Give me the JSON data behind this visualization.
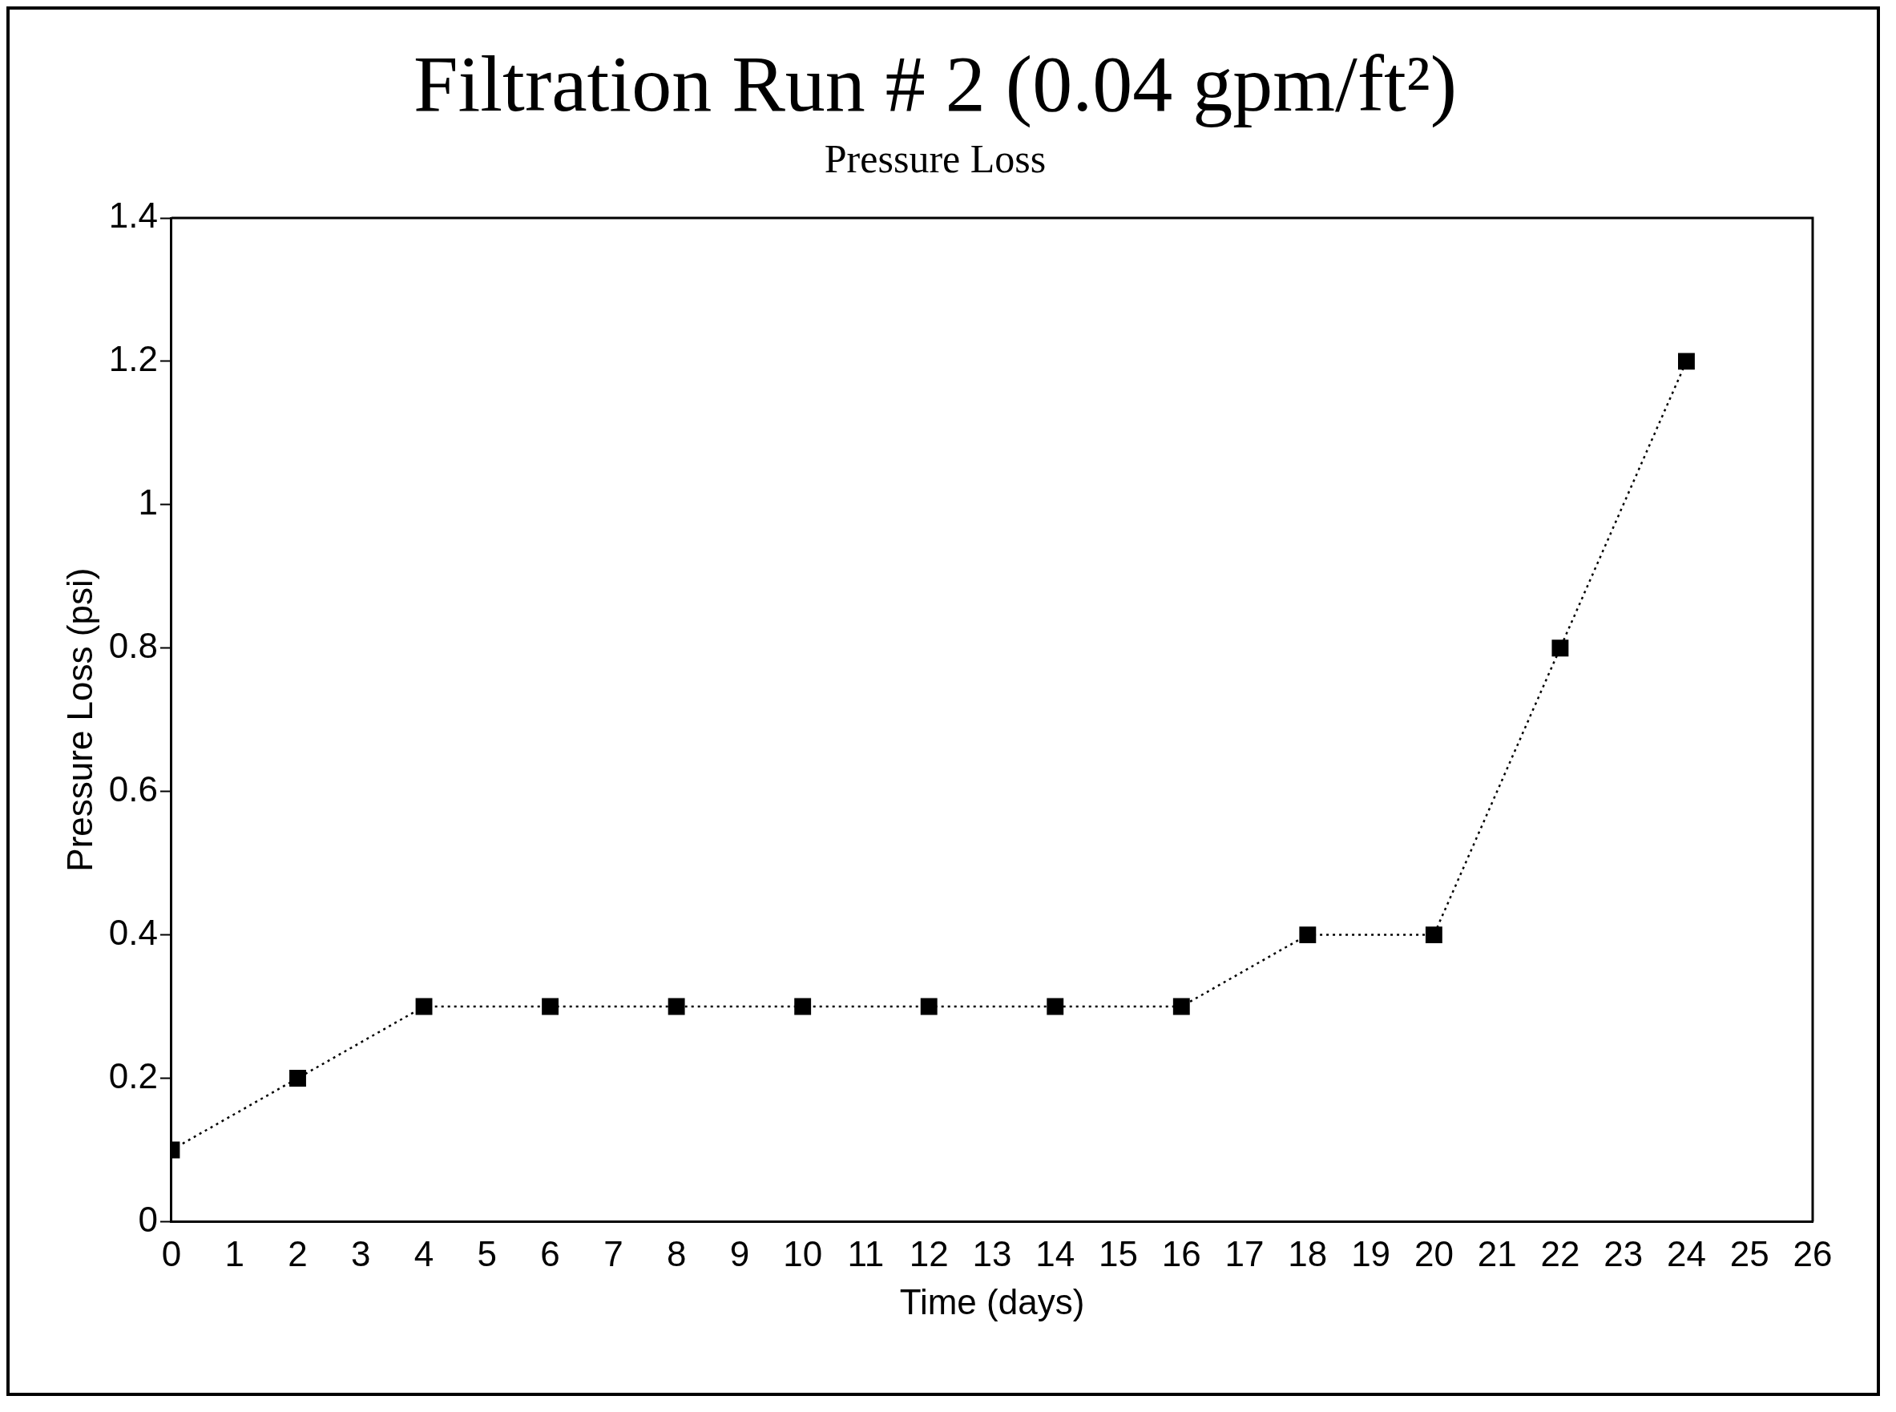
{
  "chart_data": {
    "type": "line",
    "title": "Filtration Run # 2 (0.04 gpm/ft²)",
    "subtitle": "Pressure Loss",
    "xlabel": "Time (days)",
    "ylabel": "Pressure Loss (psi)",
    "x": [
      0,
      2,
      4,
      6,
      8,
      10,
      12,
      14,
      16,
      18,
      20,
      22,
      24
    ],
    "series": [
      {
        "color": "#000000",
        "values": [
          0.1,
          0.2,
          0.3,
          0.3,
          0.3,
          0.3,
          0.3,
          0.3,
          0.3,
          0.4,
          0.4,
          0.8,
          1.2
        ]
      }
    ],
    "xlim": [
      0,
      26
    ],
    "xticks": [
      0,
      1,
      2,
      3,
      4,
      5,
      6,
      7,
      8,
      9,
      10,
      11,
      12,
      13,
      14,
      15,
      16,
      17,
      18,
      19,
      20,
      21,
      22,
      23,
      24,
      25,
      26
    ],
    "ylim": [
      0,
      1.4
    ],
    "yticks": [
      0,
      0.2,
      0.4,
      0.6,
      0.8,
      1,
      1.2,
      1.4
    ],
    "grid": false,
    "legend": false,
    "marker": "square",
    "line_style": "dotted"
  }
}
